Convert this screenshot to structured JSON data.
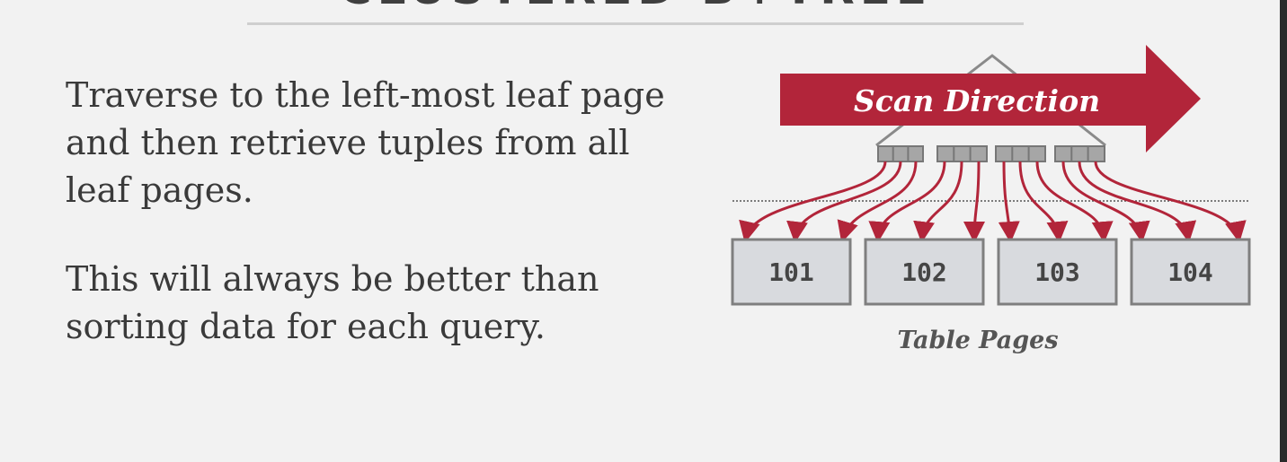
{
  "slide": {
    "title": "CLUSTERED B+TREE",
    "bullets": [
      "Traverse to the left-most leaf page and then retrieve tuples from all leaf pages.",
      "This will always be better than sorting data for each query."
    ]
  },
  "diagram": {
    "scan_direction_label": "Scan Direction",
    "table_pages_label": "Table Pages",
    "pages": [
      "101",
      "102",
      "103",
      "104"
    ],
    "colors": {
      "accent": "#b2253a",
      "node_fill": "#a6a6a6",
      "node_stroke": "#7a7a7a",
      "page_fill": "#d8dade",
      "page_stroke": "#7f7f7f"
    }
  }
}
